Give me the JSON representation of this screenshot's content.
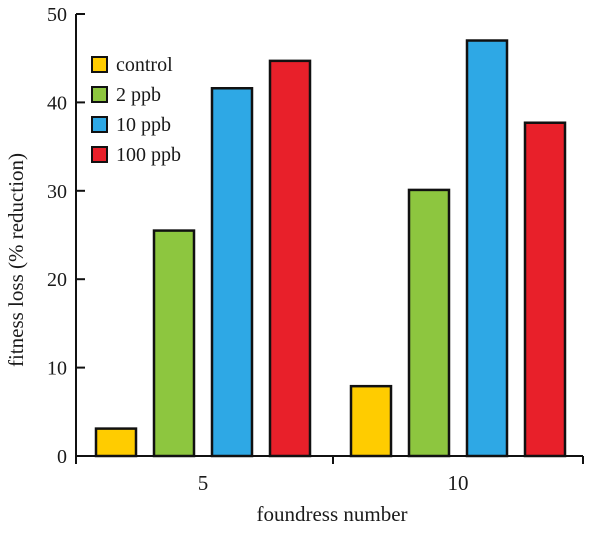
{
  "chart_data": {
    "type": "bar",
    "categories": [
      "5",
      "10"
    ],
    "series": [
      {
        "name": "control",
        "color": "#FFCC00",
        "values": [
          3.1,
          7.9
        ]
      },
      {
        "name": "2 ppb",
        "color": "#8DC63F",
        "values": [
          25.5,
          30.1
        ]
      },
      {
        "name": "10 ppb",
        "color": "#2EA8E5",
        "values": [
          41.6,
          47.0
        ]
      },
      {
        "name": "100 ppb",
        "color": "#E8202A",
        "values": [
          44.7,
          37.7
        ]
      }
    ],
    "xlabel": "foundress number",
    "ylabel": "fitness loss (% reduction)",
    "ylim": [
      0,
      50
    ],
    "yticks": [
      0,
      10,
      20,
      30,
      40,
      50
    ],
    "grid": false,
    "legend_position": "top-left"
  }
}
